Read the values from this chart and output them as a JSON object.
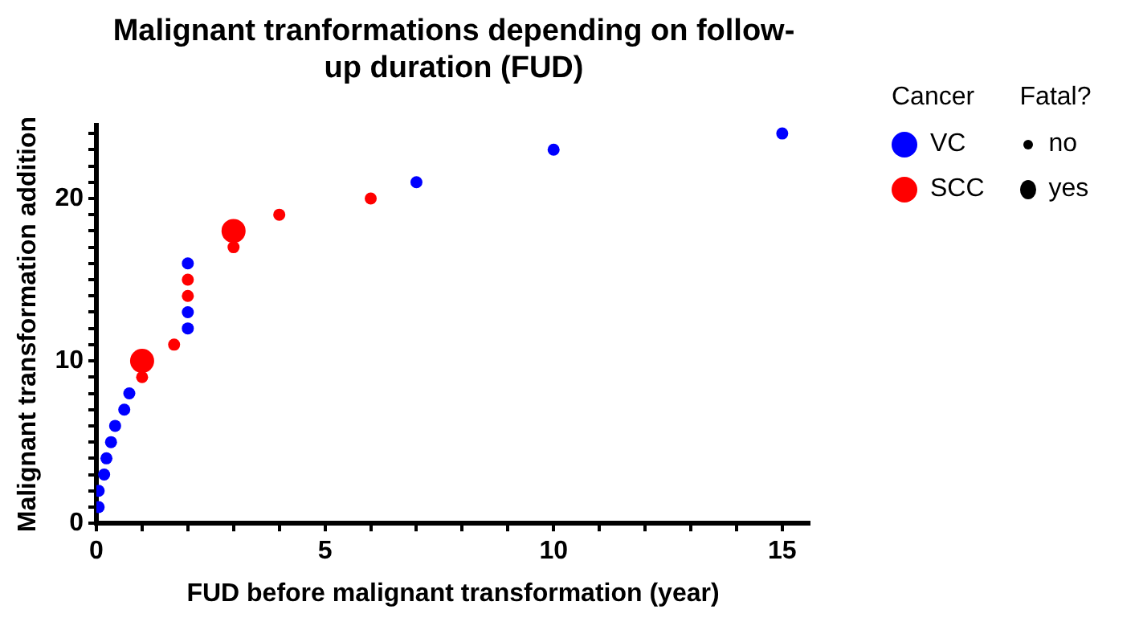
{
  "chart_data": {
    "type": "bubble",
    "title": "Malignant tranformations depending on follow-up duration (FUD)",
    "xlabel": "FUD before malignant transformation (year)",
    "ylabel": "Malignant transformation addition",
    "legend_title": "Cancer",
    "legend": "right",
    "grid": false,
    "marker": "circle",
    "annotations": [
      "Fatal?",
      "no",
      "yes"
    ],
    "xlim": [
      0,
      15.6
    ],
    "ylim": [
      0,
      24.5
    ],
    "xticks": [
      0,
      {
        "value": 1,
        "label": null
      },
      {
        "value": 2,
        "label": null
      },
      {
        "value": 3,
        "label": null
      },
      {
        "value": 4,
        "label": null
      },
      5,
      {
        "value": 6,
        "label": null
      },
      {
        "value": 7,
        "label": null
      },
      {
        "value": 8,
        "label": null
      },
      {
        "value": 9,
        "label": null
      },
      10,
      {
        "value": 11,
        "label": null
      },
      {
        "value": 12,
        "label": null
      },
      {
        "value": 13,
        "label": null
      },
      {
        "value": 14,
        "label": null
      },
      15
    ],
    "yticks": [
      0,
      {
        "value": 1,
        "label": null
      },
      {
        "value": 2,
        "label": null
      },
      {
        "value": 3,
        "label": null
      },
      {
        "value": 4,
        "label": null
      },
      {
        "value": 5,
        "label": null
      },
      {
        "value": 6,
        "label": null
      },
      {
        "value": 7,
        "label": null
      },
      {
        "value": 8,
        "label": null
      },
      {
        "value": 9,
        "label": null
      },
      10,
      {
        "value": 11,
        "label": null
      },
      {
        "value": 12,
        "label": null
      },
      {
        "value": 13,
        "label": null
      },
      {
        "value": 14,
        "label": null
      },
      {
        "value": 15,
        "label": null
      },
      {
        "value": 16,
        "label": null
      },
      {
        "value": 17,
        "label": null
      },
      {
        "value": 18,
        "label": null
      },
      {
        "value": 19,
        "label": null
      },
      20,
      {
        "value": 21,
        "label": null
      },
      {
        "value": 22,
        "label": null
      },
      {
        "value": 23,
        "label": null
      },
      {
        "value": 24,
        "label": null
      }
    ],
    "series": [
      {
        "name": "VC",
        "color": "#0000ff",
        "x": [
          0.05,
          0.05,
          0.17,
          0.22,
          0.32,
          0.41,
          0.61,
          0.72,
          2,
          2,
          2,
          7,
          10,
          15
        ],
        "values": [
          1,
          2,
          3,
          4,
          5,
          6,
          7,
          8,
          12,
          13,
          16,
          21,
          23,
          24
        ],
        "sizes": [
          0.25,
          0.25,
          0.25,
          0.25,
          0.25,
          0.25,
          0.25,
          0.25,
          0.25,
          0.25,
          0.25,
          0.25,
          0.25,
          0.25
        ]
      },
      {
        "name": "SCC",
        "color": "#ff0000",
        "x": [
          1,
          1,
          1.7,
          2,
          2,
          3,
          3,
          4,
          6
        ],
        "values": [
          9,
          10,
          11,
          14,
          15,
          17,
          18,
          19,
          20
        ],
        "sizes": [
          0.25,
          1,
          0.25,
          0.25,
          0.25,
          0.25,
          1,
          0.25,
          0.25
        ]
      }
    ]
  }
}
